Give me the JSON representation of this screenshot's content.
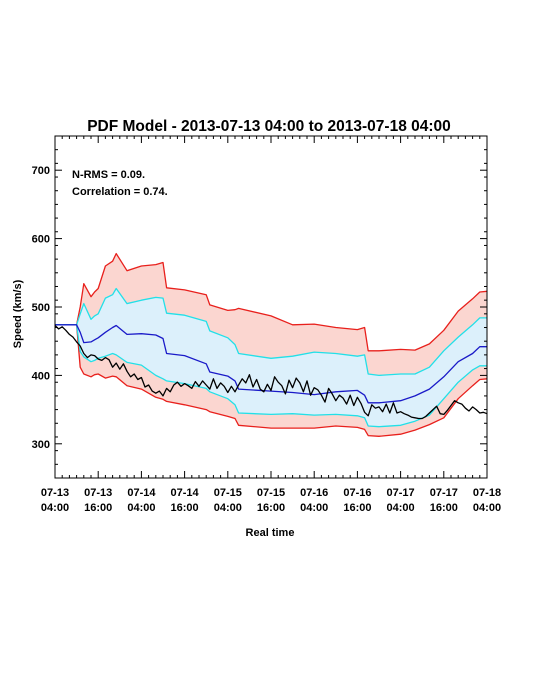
{
  "chart_data": {
    "type": "line",
    "title": "PDF Model - 2013-07-13 04:00 to 2013-07-18 04:00",
    "xlabel": "Real time",
    "ylabel": "Speed (km/s)",
    "xlim_hours": [
      0,
      120
    ],
    "ylim": [
      250,
      750
    ],
    "yticks": [
      300,
      400,
      500,
      600,
      700
    ],
    "xticks": [
      {
        "h": 0,
        "line1": "07-13",
        "line2": "04:00"
      },
      {
        "h": 12,
        "line1": "07-13",
        "line2": "16:00"
      },
      {
        "h": 24,
        "line1": "07-14",
        "line2": "04:00"
      },
      {
        "h": 36,
        "line1": "07-14",
        "line2": "16:00"
      },
      {
        "h": 48,
        "line1": "07-15",
        "line2": "04:00"
      },
      {
        "h": 60,
        "line1": "07-15",
        "line2": "16:00"
      },
      {
        "h": 72,
        "line1": "07-16",
        "line2": "04:00"
      },
      {
        "h": 84,
        "line1": "07-16",
        "line2": "16:00"
      },
      {
        "h": 96,
        "line1": "07-17",
        "line2": "04:00"
      },
      {
        "h": 108,
        "line1": "07-17",
        "line2": "16:00"
      },
      {
        "h": 120,
        "line1": "07-18",
        "line2": "04:00"
      }
    ],
    "annotations": [
      "N-RMS = 0.09.",
      "Correlation = 0.74."
    ],
    "colors": {
      "outer_band_fill": "#fbd6d0",
      "inner_band_fill": "#dcf0fb",
      "outer_line": "#e8201c",
      "inner_line": "#22e0e8",
      "median_line": "#1a1ac8",
      "observed_line": "#000000"
    },
    "series": [
      {
        "role": "outer-upper",
        "x": [
          0,
          5,
          6,
          7,
          8,
          10,
          11,
          12,
          14,
          16,
          17,
          20,
          24,
          28,
          30,
          31,
          36,
          42,
          43,
          48,
          50,
          51,
          60,
          66,
          72,
          78,
          84,
          86,
          87,
          90,
          96,
          100,
          104,
          108,
          112,
          116,
          118,
          120
        ],
        "y": [
          474,
          474,
          474,
          500,
          534,
          515,
          522,
          527,
          560,
          567,
          578,
          553,
          560,
          562,
          565,
          528,
          525,
          518,
          503,
          495,
          496,
          498,
          487,
          474,
          475,
          470,
          467,
          470,
          436,
          436,
          438,
          437,
          446,
          466,
          494,
          512,
          522,
          523
        ]
      },
      {
        "role": "inner-upper",
        "x": [
          0,
          5,
          6,
          7,
          8,
          10,
          11,
          12,
          14,
          16,
          17,
          20,
          24,
          28,
          30,
          31,
          36,
          42,
          43,
          48,
          50,
          51,
          60,
          66,
          72,
          78,
          84,
          86,
          87,
          90,
          96,
          100,
          104,
          108,
          112,
          116,
          118,
          120
        ],
        "y": [
          474,
          474,
          474,
          490,
          505,
          482,
          487,
          490,
          513,
          518,
          527,
          505,
          510,
          514,
          513,
          491,
          488,
          479,
          465,
          455,
          445,
          432,
          425,
          428,
          434,
          432,
          428,
          430,
          402,
          400,
          402,
          402,
          412,
          436,
          456,
          474,
          484,
          484
        ]
      },
      {
        "role": "median",
        "x": [
          0,
          5,
          6,
          7,
          8,
          10,
          11,
          12,
          14,
          16,
          17,
          20,
          24,
          28,
          30,
          31,
          36,
          42,
          43,
          48,
          50,
          51,
          60,
          66,
          72,
          78,
          84,
          86,
          87,
          90,
          96,
          100,
          104,
          108,
          112,
          116,
          118,
          120
        ],
        "y": [
          474,
          474,
          474,
          463,
          448,
          449,
          452,
          455,
          463,
          470,
          473,
          460,
          461,
          459,
          454,
          432,
          429,
          417,
          405,
          399,
          392,
          380,
          377,
          375,
          372,
          376,
          378,
          371,
          360,
          360,
          363,
          370,
          380,
          398,
          420,
          432,
          442,
          442
        ]
      },
      {
        "role": "inner-lower",
        "x": [
          0,
          5,
          6,
          7,
          8,
          10,
          11,
          12,
          14,
          16,
          17,
          20,
          24,
          28,
          30,
          31,
          36,
          42,
          43,
          48,
          50,
          51,
          60,
          66,
          72,
          78,
          84,
          86,
          87,
          90,
          96,
          100,
          104,
          108,
          112,
          116,
          118,
          120
        ],
        "y": [
          474,
          474,
          474,
          435,
          427,
          420,
          422,
          425,
          428,
          432,
          430,
          419,
          415,
          400,
          395,
          392,
          388,
          381,
          376,
          366,
          357,
          345,
          343,
          344,
          342,
          343,
          341,
          338,
          326,
          325,
          327,
          333,
          342,
          366,
          390,
          408,
          414,
          414
        ]
      },
      {
        "role": "outer-lower",
        "x": [
          0,
          5,
          6,
          7,
          8,
          10,
          11,
          12,
          14,
          16,
          17,
          20,
          24,
          28,
          30,
          31,
          36,
          42,
          43,
          48,
          50,
          51,
          60,
          66,
          72,
          78,
          84,
          86,
          87,
          90,
          96,
          100,
          104,
          108,
          112,
          116,
          118,
          120
        ],
        "y": [
          474,
          474,
          474,
          412,
          402,
          398,
          401,
          402,
          396,
          399,
          398,
          385,
          380,
          368,
          365,
          362,
          357,
          350,
          347,
          340,
          337,
          327,
          323,
          323,
          323,
          326,
          324,
          321,
          312,
          311,
          314,
          320,
          328,
          338,
          366,
          385,
          394,
          395
        ]
      },
      {
        "role": "observed",
        "x": [
          0,
          1,
          2,
          3,
          4,
          5,
          6,
          7,
          8,
          9,
          10,
          11,
          12,
          13,
          14,
          15,
          16,
          17,
          18,
          19,
          20,
          21,
          22,
          23,
          24,
          25,
          26,
          27,
          28,
          29,
          30,
          31,
          32,
          33,
          34,
          35,
          36,
          37,
          38,
          39,
          40,
          41,
          42,
          43,
          44,
          45,
          46,
          47,
          48,
          49,
          50,
          51,
          52,
          53,
          54,
          55,
          56,
          57,
          58,
          59,
          60,
          61,
          62,
          63,
          64,
          65,
          66,
          67,
          68,
          69,
          70,
          71,
          72,
          73,
          74,
          75,
          76,
          77,
          78,
          79,
          80,
          81,
          82,
          83,
          84,
          85,
          86,
          87,
          88,
          89,
          90,
          91,
          92,
          93,
          94,
          95,
          96,
          97,
          98,
          99,
          100,
          101,
          102,
          103,
          104,
          105,
          106,
          107,
          108,
          109,
          110,
          111,
          112,
          113,
          114,
          115,
          116,
          117,
          118,
          119,
          120
        ],
        "y": [
          473,
          468,
          471,
          466,
          460,
          456,
          449,
          443,
          432,
          426,
          430,
          429,
          424,
          422,
          426,
          423,
          412,
          418,
          409,
          417,
          406,
          398,
          402,
          394,
          397,
          383,
          386,
          377,
          374,
          377,
          370,
          381,
          376,
          386,
          390,
          384,
          388,
          385,
          381,
          391,
          384,
          392,
          386,
          380,
          395,
          381,
          389,
          384,
          375,
          384,
          376,
          386,
          395,
          389,
          401,
          383,
          394,
          380,
          376,
          387,
          378,
          398,
          390,
          385,
          373,
          393,
          382,
          396,
          389,
          376,
          392,
          371,
          382,
          379,
          371,
          361,
          381,
          373,
          363,
          371,
          367,
          358,
          371,
          356,
          368,
          359,
          346,
          341,
          357,
          352,
          354,
          347,
          358,
          345,
          360,
          345,
          347,
          344,
          342,
          339,
          338,
          337,
          337,
          340,
          345,
          350,
          355,
          344,
          343,
          349,
          356,
          363,
          360,
          358,
          352,
          348,
          354,
          350,
          345,
          346,
          344
        ]
      }
    ]
  }
}
